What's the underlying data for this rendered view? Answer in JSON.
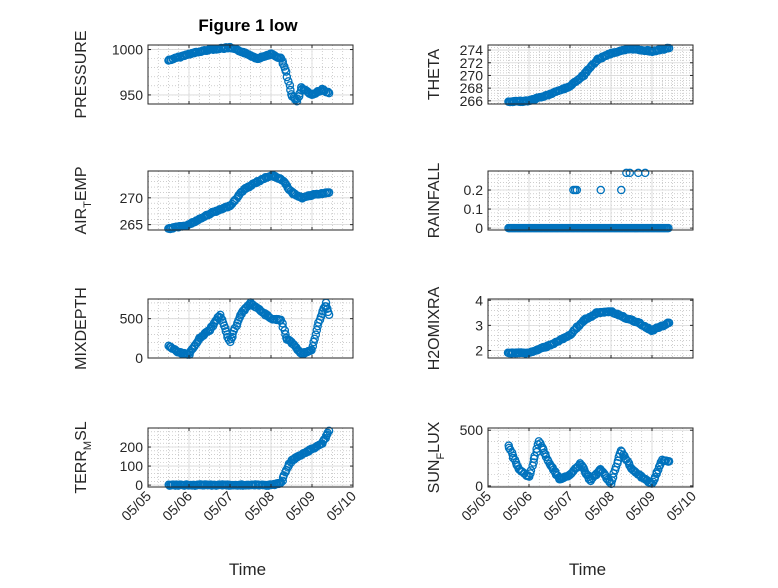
{
  "figure": {
    "title": "Figure 1 low"
  },
  "colors": {
    "marker": "#0072BD",
    "axes": "#262626",
    "grid": "#b0b0b0",
    "background": "#ffffff"
  },
  "chart_data": [
    {
      "type": "scatter",
      "marker": "o",
      "grid": "on",
      "title": "Figure 1 low",
      "ylabel": "PRESSURE",
      "xlabel": "",
      "xlim": [
        "05/05",
        "05/10"
      ],
      "xticks": [
        "05/05",
        "05/06",
        "05/07",
        "05/08",
        "05/09",
        "05/10"
      ],
      "xticks_shown": false,
      "ylim": [
        940,
        1005
      ],
      "yticks": [
        950,
        1000
      ],
      "series": [
        {
          "x": [
            "05/05 12:00",
            "05/06 00:00",
            "05/06 12:00",
            "05/07 00:00",
            "05/07 08:00",
            "05/07 16:00",
            "05/08 00:00",
            "05/08 06:00",
            "05/08 09:00",
            "05/08 12:00",
            "05/08 15:00",
            "05/08 18:00",
            "05/09 00:00",
            "05/09 06:00",
            "05/09 10:00"
          ],
          "y": [
            988,
            995,
            1000,
            1002,
            997,
            990,
            995,
            990,
            975,
            950,
            943,
            958,
            950,
            956,
            952
          ]
        }
      ]
    },
    {
      "type": "scatter",
      "marker": "o",
      "grid": "on",
      "ylabel": "THETA",
      "xlabel": "",
      "xlim": [
        "05/05",
        "05/10"
      ],
      "xticks": [
        "05/05",
        "05/06",
        "05/07",
        "05/08",
        "05/09",
        "05/10"
      ],
      "xticks_shown": false,
      "ylim": [
        265.5,
        274.8
      ],
      "yticks": [
        266,
        268,
        270,
        272,
        274
      ],
      "series": [
        {
          "x": [
            "05/05 12:00",
            "05/06 00:00",
            "05/06 12:00",
            "05/07 00:00",
            "05/07 08:00",
            "05/07 16:00",
            "05/08 00:00",
            "05/08 12:00",
            "05/09 00:00",
            "05/09 10:00"
          ],
          "y": [
            265.8,
            266.0,
            267.0,
            268.3,
            270.0,
            272.5,
            273.5,
            274.2,
            273.8,
            274.3
          ]
        }
      ]
    },
    {
      "type": "scatter",
      "marker": "o",
      "grid": "on",
      "ylabel": "AIR_TEMP",
      "xlabel": "",
      "xlim": [
        "05/05",
        "05/10"
      ],
      "xticks": [
        "05/05",
        "05/06",
        "05/07",
        "05/08",
        "05/09",
        "05/10"
      ],
      "xticks_shown": false,
      "ylim": [
        264,
        275
      ],
      "yticks": [
        265,
        270
      ],
      "series": [
        {
          "x": [
            "05/05 12:00",
            "05/06 00:00",
            "05/06 12:00",
            "05/07 00:00",
            "05/07 08:00",
            "05/07 16:00",
            "05/08 00:00",
            "05/08 06:00",
            "05/08 12:00",
            "05/08 18:00",
            "05/09 00:00",
            "05/09 10:00"
          ],
          "y": [
            264.2,
            265.0,
            267.0,
            268.5,
            271.5,
            273.0,
            274.2,
            273.5,
            271.0,
            270.0,
            270.5,
            271.0
          ]
        }
      ]
    },
    {
      "type": "scatter",
      "marker": "o",
      "grid": "on",
      "ylabel": "RAINFALL",
      "xlabel": "",
      "xlim": [
        "05/05",
        "05/10"
      ],
      "xticks": [
        "05/05",
        "05/06",
        "05/07",
        "05/08",
        "05/09",
        "05/10"
      ],
      "xticks_shown": false,
      "ylim": [
        -0.01,
        0.3
      ],
      "yticks": [
        0,
        0.1,
        0.2
      ],
      "series": [
        {
          "x": [
            "05/05 12:00",
            "05/06 00:00",
            "05/06 12:00",
            "05/07 00:00",
            "05/07 12:00",
            "05/08 00:00",
            "05/08 12:00",
            "05/09 00:00",
            "05/09 10:00",
            "05/07 02:00",
            "05/07 04:00",
            "05/07 18:00",
            "05/08 06:00",
            "05/08 09:00",
            "05/08 11:00",
            "05/08 16:00",
            "05/08 20:00",
            "05/07 03:00"
          ],
          "y": [
            0,
            0,
            0,
            0,
            0,
            0,
            0,
            0,
            0,
            0.2,
            0.2,
            0.2,
            0.2,
            0.29,
            0.29,
            0.29,
            0.29,
            0.2
          ]
        }
      ]
    },
    {
      "type": "scatter",
      "marker": "o",
      "grid": "on",
      "ylabel": "MIXDEPTH",
      "xlabel": "",
      "xlim": [
        "05/05",
        "05/10"
      ],
      "xticks": [
        "05/05",
        "05/06",
        "05/07",
        "05/08",
        "05/09",
        "05/10"
      ],
      "xticks_shown": false,
      "ylim": [
        0,
        750
      ],
      "yticks": [
        0,
        500
      ],
      "series": [
        {
          "x": [
            "05/05 12:00",
            "05/05 18:00",
            "05/06 00:00",
            "05/06 06:00",
            "05/06 12:00",
            "05/06 18:00",
            "05/07 00:00",
            "05/07 06:00",
            "05/07 12:00",
            "05/07 18:00",
            "05/08 00:00",
            "05/08 06:00",
            "05/08 09:00",
            "05/08 12:00",
            "05/08 18:00",
            "05/09 00:00",
            "05/09 04:00",
            "05/09 08:00",
            "05/09 10:00"
          ],
          "y": [
            150,
            70,
            40,
            250,
            350,
            550,
            200,
            550,
            700,
            600,
            500,
            480,
            250,
            200,
            50,
            100,
            450,
            700,
            550
          ]
        }
      ]
    },
    {
      "type": "scatter",
      "marker": "o",
      "grid": "on",
      "ylabel": "H2OMIXRA",
      "xlabel": "",
      "xlim": [
        "05/05",
        "05/10"
      ],
      "xticks": [
        "05/05",
        "05/06",
        "05/07",
        "05/08",
        "05/09",
        "05/10"
      ],
      "xticks_shown": false,
      "ylim": [
        1.7,
        4.05
      ],
      "yticks": [
        2,
        3,
        4
      ],
      "series": [
        {
          "x": [
            "05/05 12:00",
            "05/06 00:00",
            "05/06 12:00",
            "05/07 00:00",
            "05/07 08:00",
            "05/07 16:00",
            "05/08 00:00",
            "05/08 08:00",
            "05/08 16:00",
            "05/09 00:00",
            "05/09 10:00"
          ],
          "y": [
            1.9,
            1.9,
            2.2,
            2.6,
            3.2,
            3.5,
            3.55,
            3.3,
            3.1,
            2.8,
            3.1
          ]
        }
      ]
    },
    {
      "type": "scatter",
      "marker": "o",
      "grid": "on",
      "ylabel": "TERR_MSL",
      "xlabel": "Time",
      "xlim": [
        "05/05",
        "05/10"
      ],
      "xticks": [
        "05/05",
        "05/06",
        "05/07",
        "05/08",
        "05/09",
        "05/10"
      ],
      "xticks_shown": true,
      "ylim": [
        -10,
        300
      ],
      "yticks": [
        0,
        100,
        200
      ],
      "series": [
        {
          "x": [
            "05/05 12:00",
            "05/06 00:00",
            "05/06 12:00",
            "05/07 00:00",
            "05/07 12:00",
            "05/08 00:00",
            "05/08 06:00",
            "05/08 09:00",
            "05/08 12:00",
            "05/08 18:00",
            "05/09 00:00",
            "05/09 06:00",
            "05/09 10:00"
          ],
          "y": [
            0,
            0,
            0,
            0,
            0,
            0,
            10,
            80,
            130,
            160,
            190,
            220,
            285
          ]
        }
      ]
    },
    {
      "type": "scatter",
      "marker": "o",
      "grid": "on",
      "ylabel": "SUN_FLUX",
      "xlabel": "Time",
      "xlim": [
        "05/05",
        "05/10"
      ],
      "xticks": [
        "05/05",
        "05/06",
        "05/07",
        "05/08",
        "05/09",
        "05/10"
      ],
      "xticks_shown": true,
      "ylim": [
        -10,
        520
      ],
      "yticks": [
        0,
        500
      ],
      "series": [
        {
          "x": [
            "05/05 12:00",
            "05/05 18:00",
            "05/06 00:00",
            "05/06 06:00",
            "05/06 12:00",
            "05/06 18:00",
            "05/07 00:00",
            "05/07 06:00",
            "05/07 12:00",
            "05/07 18:00",
            "05/08 00:00",
            "05/08 06:00",
            "05/08 12:00",
            "05/08 18:00",
            "05/09 00:00",
            "05/09 06:00",
            "05/09 10:00"
          ],
          "y": [
            360,
            150,
            80,
            400,
            200,
            60,
            100,
            200,
            50,
            150,
            20,
            320,
            150,
            80,
            20,
            230,
            220
          ]
        }
      ]
    }
  ]
}
